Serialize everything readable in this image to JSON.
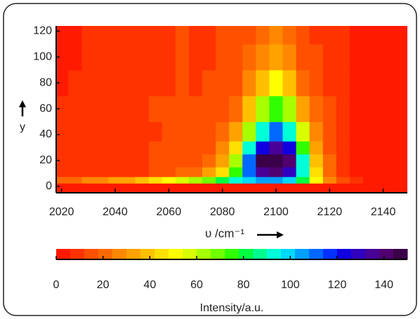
{
  "chart_data": {
    "type": "contour",
    "x": [
      2020,
      2025,
      2030,
      2035,
      2040,
      2045,
      2050,
      2055,
      2060,
      2065,
      2070,
      2075,
      2080,
      2085,
      2090,
      2095,
      2100,
      2105,
      2110,
      2115,
      2120,
      2125,
      2130,
      2135,
      2140,
      2145,
      2150
    ],
    "y": [
      0,
      5,
      10,
      20,
      30,
      40,
      60,
      80,
      100,
      120
    ],
    "z": [
      [
        3,
        3,
        3,
        3,
        3,
        3,
        3,
        3,
        3,
        3,
        3,
        3,
        3,
        3,
        3,
        3,
        3,
        3,
        3,
        3,
        3,
        3,
        3,
        3,
        3,
        3,
        3
      ],
      [
        20,
        22,
        24,
        26,
        30,
        34,
        38,
        45,
        50,
        55,
        60,
        70,
        80,
        90,
        100,
        105,
        105,
        100,
        80,
        50,
        25,
        12,
        6,
        4,
        3,
        3,
        3
      ],
      [
        8,
        8,
        8,
        8,
        8,
        9,
        10,
        12,
        15,
        18,
        22,
        30,
        45,
        75,
        110,
        135,
        140,
        130,
        90,
        45,
        20,
        10,
        4,
        3,
        3,
        3,
        3
      ],
      [
        7,
        7,
        7,
        7,
        8,
        9,
        10,
        12,
        12,
        13,
        14,
        18,
        30,
        60,
        110,
        145,
        150,
        140,
        95,
        40,
        18,
        9,
        4,
        3,
        3,
        3,
        3
      ],
      [
        7,
        8,
        8,
        9,
        9,
        10,
        11,
        12,
        12,
        13,
        14,
        16,
        24,
        45,
        90,
        125,
        135,
        120,
        75,
        32,
        16,
        9,
        4,
        3,
        3,
        3,
        3
      ],
      [
        6,
        6,
        8,
        9,
        10,
        10,
        11,
        11,
        12,
        12,
        13,
        15,
        20,
        35,
        65,
        95,
        110,
        95,
        55,
        25,
        14,
        8,
        4,
        3,
        3,
        3,
        3
      ],
      [
        7,
        8,
        10,
        10,
        9,
        9,
        10,
        12,
        12,
        13,
        12,
        13,
        15,
        22,
        40,
        62,
        72,
        60,
        35,
        18,
        12,
        8,
        4,
        3,
        3,
        3,
        3
      ],
      [
        5,
        6,
        7,
        9,
        9,
        8,
        9,
        10,
        10,
        12,
        11,
        12,
        13,
        16,
        25,
        40,
        48,
        38,
        22,
        14,
        10,
        7,
        4,
        3,
        3,
        3,
        3
      ],
      [
        5,
        5,
        6,
        7,
        7,
        8,
        9,
        10,
        10,
        12,
        11,
        11,
        12,
        14,
        18,
        28,
        34,
        26,
        16,
        12,
        9,
        7,
        4,
        3,
        3,
        3,
        3
      ],
      [
        5,
        5,
        6,
        6,
        7,
        8,
        9,
        10,
        10,
        12,
        11,
        11,
        12,
        13,
        15,
        20,
        25,
        20,
        14,
        11,
        9,
        7,
        4,
        3,
        3,
        3,
        3
      ]
    ],
    "xlim": [
      2018,
      2149
    ],
    "ylim": [
      -5,
      124
    ],
    "xticks": [
      2020,
      2040,
      2060,
      2080,
      2100,
      2120,
      2140
    ],
    "yticks": [
      0,
      20,
      40,
      60,
      80,
      100,
      120
    ],
    "x_label": "υ /cm⁻¹",
    "y_label": "y",
    "colorbar": {
      "label": "Intensity/a.u.",
      "clim": [
        0,
        150
      ],
      "ticks": [
        0,
        20,
        40,
        60,
        80,
        100,
        120,
        140
      ],
      "colors": [
        "#ff1a00",
        "#ff3300",
        "#ff5000",
        "#ff6a00",
        "#ff8800",
        "#ffa200",
        "#ffc000",
        "#ffe000",
        "#ffff00",
        "#d8ff00",
        "#a8ff00",
        "#70ff00",
        "#30ff00",
        "#00ff40",
        "#00ff90",
        "#00ffd8",
        "#00d8ff",
        "#00a0ff",
        "#0068ff",
        "#0030ff",
        "#1000e0",
        "#3000c0",
        "#480098",
        "#500070",
        "#3a0048"
      ]
    }
  }
}
